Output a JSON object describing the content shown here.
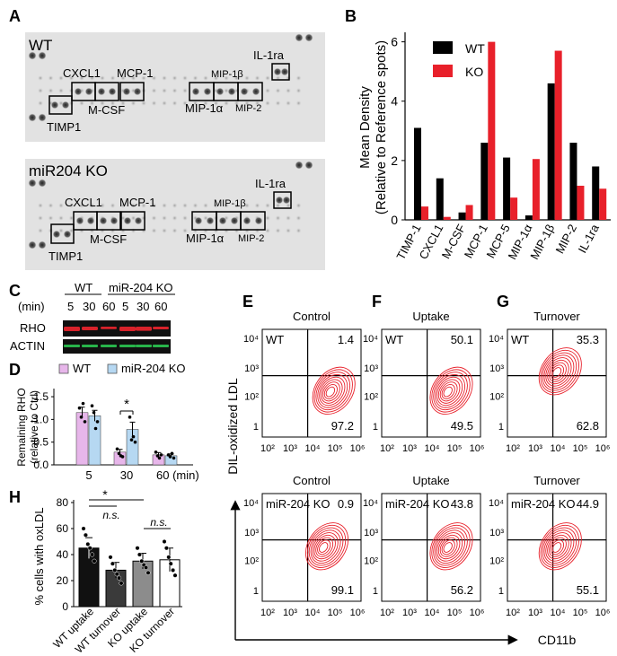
{
  "panel_labels": {
    "A": "A",
    "B": "B",
    "C": "C",
    "D": "D",
    "E": "E",
    "F": "F",
    "G": "G",
    "H": "H"
  },
  "panelA": {
    "wt_title": "WT",
    "ko_title": "miR204 KO",
    "wt_labels": {
      "cxcl1": "CXCL1",
      "mcp1": "MCP-1",
      "mcsf": "M-CSF",
      "timp1": "TIMP1",
      "mip1b": "MIP-1β",
      "mip1a": "MIP-1α",
      "mip2": "MIP-2",
      "il1ra": "IL-1ra"
    },
    "ko_labels": {
      "cxcl1": "CXCL1",
      "mcp1": "MCP-1",
      "mcsf": "M-CSF",
      "timp1": "TIMP1",
      "mip1b": "MIP-1β",
      "mip1a": "MIP-1α",
      "mip2": "MIP-2",
      "il1ra": "IL-1ra"
    }
  },
  "panelC": {
    "min_label": "(min)",
    "group_wt": "WT",
    "group_ko": "miR-204 KO",
    "times": [
      "5",
      "30",
      "60",
      "5",
      "30",
      "60"
    ],
    "rows": [
      "RHO",
      "ACTIN"
    ],
    "colors": {
      "rho": "#d8222a",
      "actin": "#28b44a",
      "blot_bg": "#111111"
    }
  },
  "chart_data": [
    {
      "id": "panelB",
      "type": "bar",
      "categories": [
        "TIMP-1",
        "CXCL1",
        "M-CSF",
        "MCP-1",
        "MCP-5",
        "MIP-1α",
        "MIP-1β",
        "MIP-2",
        "IL-1ra"
      ],
      "series": [
        {
          "name": "WT",
          "color": "#000000",
          "values": [
            3.1,
            1.4,
            0.25,
            2.6,
            2.1,
            0.15,
            4.6,
            2.6,
            1.8
          ]
        },
        {
          "name": "KO",
          "color": "#e8202a",
          "values": [
            0.45,
            0.1,
            0.5,
            6.0,
            0.75,
            2.05,
            5.7,
            1.15,
            1.05
          ]
        }
      ],
      "ylabel_line1": "Mean Density",
      "ylabel_line2": "(Relative to Reference spots)",
      "yticks": [
        "0",
        "2",
        "4",
        "6"
      ],
      "ylim": [
        0,
        6.2
      ],
      "legend": "top-left"
    },
    {
      "id": "panelD",
      "type": "bar",
      "categories": [
        "5",
        "30",
        "60 (min)"
      ],
      "series": [
        {
          "name": "WT",
          "color": "#e7b6ea",
          "values": [
            1.15,
            0.28,
            0.22
          ],
          "errors": [
            0.12,
            0.06,
            0.05
          ],
          "points": [
            [
              1.25,
              1.05,
              1.35,
              0.95
            ],
            [
              0.35,
              0.25,
              0.2,
              0.18
            ],
            [
              0.28,
              0.2,
              0.15,
              0.22
            ]
          ]
        },
        {
          "name": "miR-204 KO",
          "color": "#b6d8f2",
          "values": [
            1.08,
            0.78,
            0.2
          ],
          "errors": [
            0.12,
            0.16,
            0.04
          ],
          "points": [
            [
              1.3,
              1.15,
              0.8,
              0.95
            ],
            [
              1.05,
              0.55,
              0.62,
              0.5
            ],
            [
              0.22,
              0.18,
              0.25,
              0.15
            ]
          ]
        }
      ],
      "ylabel_line1": "Remaining RHO",
      "ylabel_line2": "(relative to Ctrl)",
      "yticks": [
        "0.0",
        "0.5",
        "1.0",
        "1.5"
      ],
      "ylim": [
        0,
        1.6
      ],
      "significance": "*",
      "legend": "top"
    },
    {
      "id": "panelH",
      "type": "bar",
      "categories": [
        "WT uptake",
        "WT turnover",
        "KO uptake",
        "KO turnover"
      ],
      "values": [
        45,
        28,
        35,
        36
      ],
      "errors": [
        8,
        6,
        6,
        9
      ],
      "bar_colors": [
        "#111111",
        "#3a3a3a",
        "#8c8c8c",
        "#ffffff"
      ],
      "points": [
        [
          60,
          55,
          48,
          45,
          40,
          35
        ],
        [
          38,
          33,
          28,
          25,
          22,
          18
        ],
        [
          45,
          40,
          35,
          32,
          30,
          26
        ],
        [
          50,
          45,
          38,
          33,
          28,
          24
        ]
      ],
      "ylabel": "% cells with oxLDL",
      "yticks": [
        "0",
        "20",
        "40",
        "60",
        "80"
      ],
      "ylim": [
        0,
        80
      ],
      "annotations": [
        "*",
        "n.s.",
        "n.s."
      ]
    },
    {
      "id": "panelEFG",
      "type": "scatter",
      "title_row1": [
        "Control",
        "Uptake",
        "Turnover"
      ],
      "title_row2": [
        "Control",
        "Uptake",
        "Turnover"
      ],
      "row1_group": "WT",
      "row2_group": "miR-204 KO",
      "upper_right": [
        [
          "1.4",
          "50.1",
          "35.3"
        ],
        [
          "0.9",
          "43.8",
          "44.9"
        ]
      ],
      "lower_right": [
        [
          "97.2",
          "49.5",
          "62.8"
        ],
        [
          "99.1",
          "56.2",
          "55.1"
        ]
      ],
      "y_ticks": [
        "10⁴",
        "10³",
        "10²",
        "1"
      ],
      "x_ticks": [
        "10²",
        "10³",
        "10⁴",
        "10⁵",
        "10⁶"
      ],
      "ylabel": "DIL-oxidized LDL",
      "xlabel": "CD11b",
      "contour_color": "#e8202a"
    }
  ]
}
